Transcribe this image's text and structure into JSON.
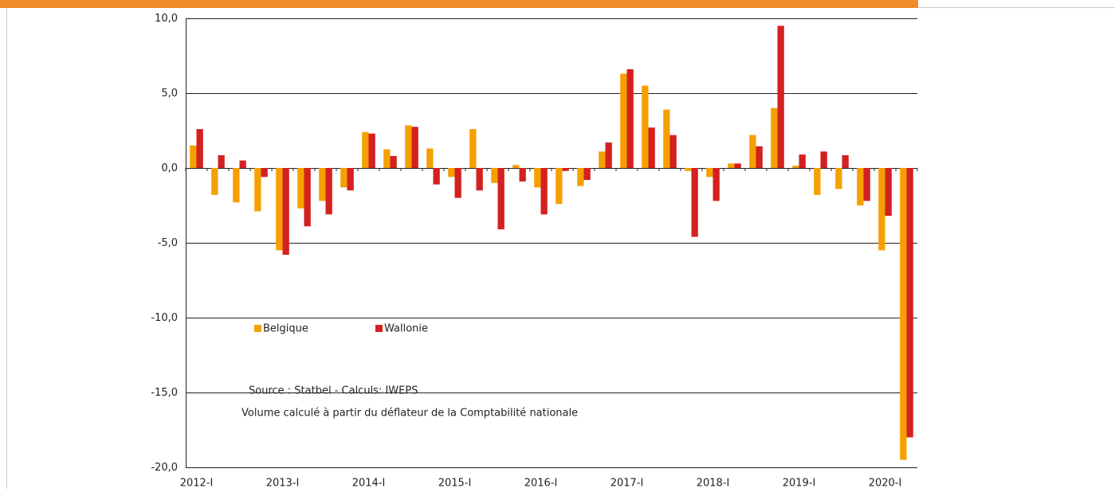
{
  "chart_data": {
    "type": "bar",
    "categories": [
      "2012-I",
      null,
      null,
      null,
      "2013-I",
      null,
      null,
      null,
      "2014-I",
      null,
      null,
      null,
      "2015-I",
      null,
      null,
      null,
      "2016-I",
      null,
      null,
      null,
      "2017-I",
      null,
      null,
      null,
      "2018-I",
      null,
      null,
      null,
      "2019-I",
      null,
      null,
      null,
      "2020-I",
      null
    ],
    "series": [
      {
        "name": "Belgique",
        "color": "#f5a000",
        "values": [
          1.5,
          -1.8,
          -2.3,
          -2.9,
          -5.5,
          -2.7,
          -2.2,
          -1.3,
          2.4,
          1.25,
          2.85,
          1.3,
          -0.6,
          2.6,
          -1.0,
          0.2,
          -1.3,
          -2.4,
          -1.2,
          1.1,
          6.3,
          5.5,
          3.9,
          -0.2,
          -0.6,
          0.3,
          2.2,
          4.0,
          0.15,
          -1.8,
          -1.4,
          -2.5,
          -5.5,
          -19.5
        ]
      },
      {
        "name": "Wallonie",
        "color": "#d42020",
        "values": [
          2.6,
          0.85,
          0.5,
          -0.6,
          -5.8,
          -3.9,
          -3.1,
          -1.5,
          2.3,
          0.8,
          2.75,
          -1.1,
          -2.0,
          -1.5,
          -4.1,
          -0.9,
          -3.1,
          -0.2,
          -0.8,
          1.7,
          6.6,
          2.7,
          2.2,
          -4.6,
          -2.2,
          0.3,
          1.45,
          9.5,
          0.9,
          1.1,
          0.85,
          -2.2,
          -3.2,
          -18.0
        ]
      }
    ],
    "ylim": [
      -20,
      10
    ],
    "yticks": [
      {
        "value": -20,
        "label": "-20,0"
      },
      {
        "value": -15,
        "label": "-15,0"
      },
      {
        "value": -10,
        "label": "-10,0"
      },
      {
        "value": -5,
        "label": "-5,0"
      },
      {
        "value": 0,
        "label": "0,0"
      },
      {
        "value": 5,
        "label": "5,0"
      },
      {
        "value": 10,
        "label": "10,0"
      }
    ],
    "grid": true,
    "annotations": [
      "Source : Statbel - Calculs: IWEPS",
      "Volume calculé à partir du déflateur de la Comptabilité nationale"
    ]
  }
}
